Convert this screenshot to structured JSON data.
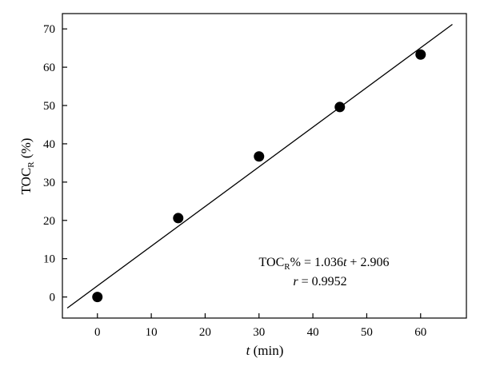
{
  "chart_data": {
    "type": "scatter",
    "title": "",
    "xlabel": {
      "symbol": "t",
      "unit": " (min)"
    },
    "ylabel": {
      "main": "TOC",
      "sub": "R",
      "unit": " (%)"
    },
    "xlim": [
      -6.5,
      68.5
    ],
    "ylim": [
      -5.5,
      74
    ],
    "xticks": [
      0,
      10,
      20,
      30,
      40,
      50,
      60
    ],
    "yticks": [
      0,
      10,
      20,
      30,
      40,
      50,
      60,
      70
    ],
    "grid": false,
    "series": [
      {
        "marker": "filled-circle",
        "color": "#000000",
        "x": [
          0,
          15,
          30,
          45,
          60
        ],
        "y": [
          0,
          20.6,
          36.7,
          49.6,
          63.3
        ]
      }
    ],
    "fit_line": {
      "slope": 1.036,
      "intercept": 2.906,
      "x_range": [
        -5.6,
        65.9
      ],
      "color": "#000000"
    },
    "annotation": {
      "line1": {
        "main": "TOC",
        "sub": "R",
        "eq": "% = 1.036",
        "var": "t",
        "rest": " + 2.906"
      },
      "line2": {
        "var": "r",
        "rest": " = 0.9952"
      }
    }
  }
}
